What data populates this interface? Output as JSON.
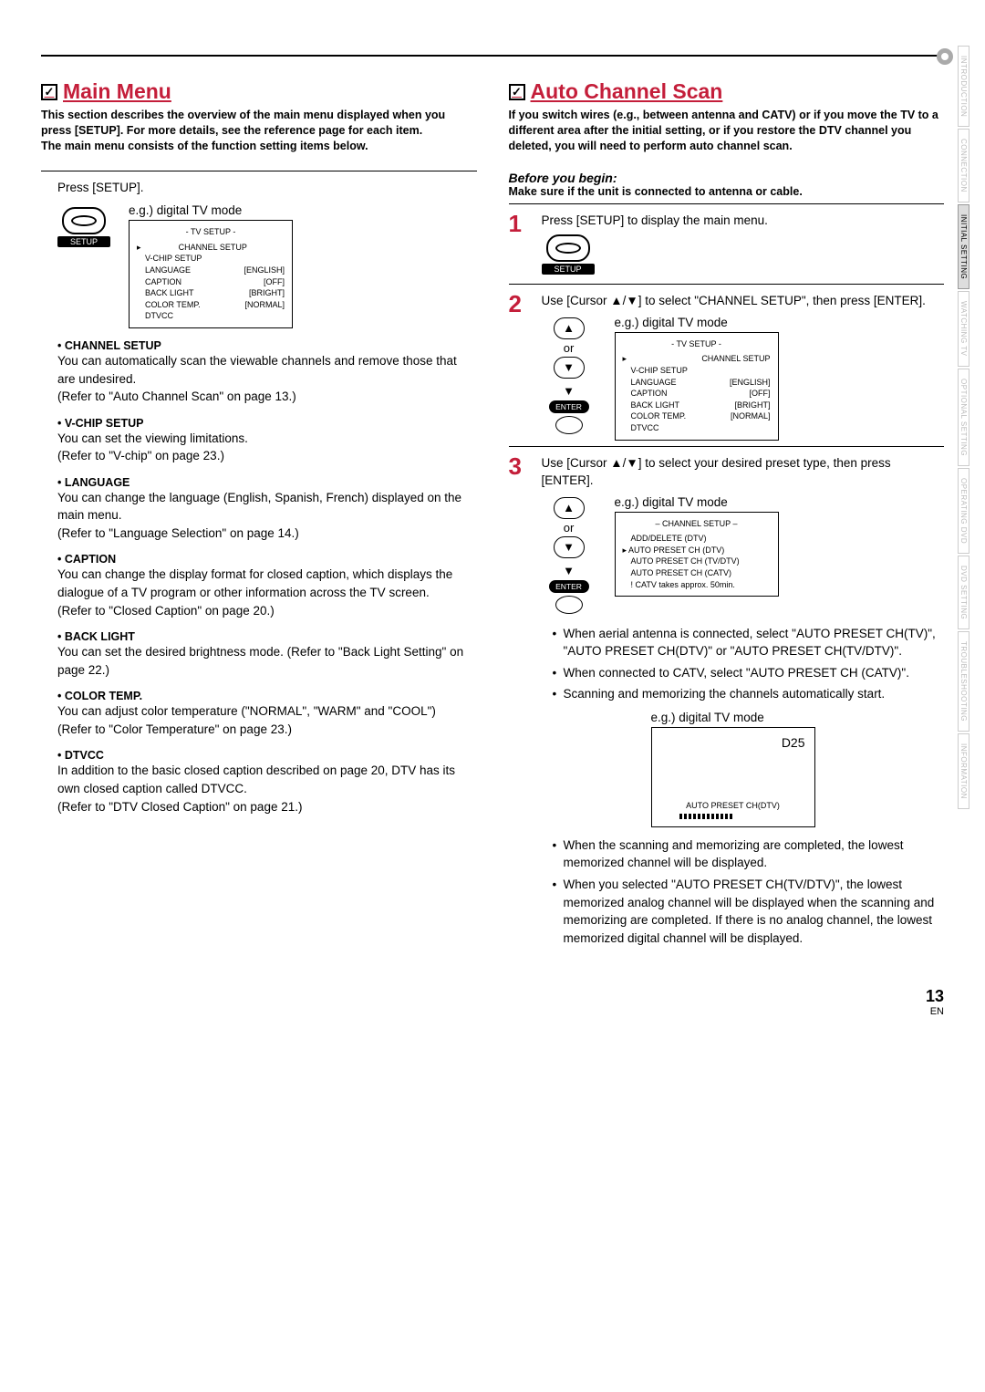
{
  "left": {
    "title": "Main Menu",
    "intro_l1": "This section describes the overview of the main menu displayed when you press [SETUP]. For more details, see the reference page for each item.",
    "intro_l2": "The main menu consists of the function setting items below.",
    "press_setup": "Press [SETUP].",
    "eg": "e.g.) digital TV mode",
    "tv_box": {
      "header": "- TV SETUP -",
      "rows": [
        [
          "CHANNEL SETUP",
          ""
        ],
        [
          "V-CHIP SETUP",
          ""
        ],
        [
          "LANGUAGE",
          "[ENGLISH]"
        ],
        [
          "CAPTION",
          "[OFF]"
        ],
        [
          "BACK LIGHT",
          "[BRIGHT]"
        ],
        [
          "COLOR TEMP.",
          "[NORMAL]"
        ],
        [
          "DTVCC",
          ""
        ]
      ]
    },
    "items": [
      {
        "h": "• CHANNEL SETUP",
        "b": "You can automatically scan the viewable channels and remove those that are undesired.",
        "r": "(Refer to \"Auto Channel Scan\" on page 13.)"
      },
      {
        "h": "• V-CHIP SETUP",
        "b": "You can set the viewing limitations.",
        "r": "(Refer to \"V-chip\" on page 23.)"
      },
      {
        "h": "• LANGUAGE",
        "b": "You can change the language (English, Spanish, French) displayed on the main menu.",
        "r": "(Refer to \"Language Selection\" on page 14.)"
      },
      {
        "h": "• CAPTION",
        "b": "You can change the display format for closed caption, which displays the dialogue of a TV program or other information across the TV screen.",
        "r": "(Refer to \"Closed Caption\" on page 20.)"
      },
      {
        "h": "• BACK LIGHT",
        "b": "You can set the desired brightness mode. (Refer to \"Back Light Setting\" on page 22.)",
        "r": ""
      },
      {
        "h": "• COLOR TEMP.",
        "b": "You can adjust color temperature (\"NORMAL\", \"WARM\" and \"COOL\")",
        "r": "(Refer to \"Color Temperature\" on page 23.)"
      },
      {
        "h": "• DTVCC",
        "b": "In addition to the basic closed caption described on page 20, DTV has its own closed caption called DTVCC.",
        "r": "(Refer to \"DTV Closed Caption\" on page 21.)"
      }
    ]
  },
  "right": {
    "title": "Auto Channel Scan",
    "intro": "If you switch wires (e.g., between antenna and CATV) or if you move the TV to a different area after the initial setting, or if you restore the DTV channel you deleted, you will need to perform auto channel scan.",
    "before": "Before you begin:",
    "before_sub": "Make sure if the unit is connected to antenna or cable.",
    "step1": "Press [SETUP] to display the main menu.",
    "step2": "Use [Cursor ▲/▼] to select \"CHANNEL SETUP\", then press [ENTER].",
    "step3": "Use [Cursor ▲/▼] to select your desired preset type, then press [ENTER].",
    "eg": "e.g.) digital TV mode",
    "or": "or",
    "setup_label": "SETUP",
    "enter_label": "ENTER",
    "ch_box": {
      "header": "– CHANNEL SETUP –",
      "rows": [
        "ADD/DELETE (DTV)",
        "AUTO PRESET CH (DTV)",
        "AUTO PRESET CH (TV/DTV)",
        "AUTO PRESET CH (CATV)",
        "! CATV takes approx. 50min."
      ]
    },
    "notes1": [
      "When aerial antenna is connected, select \"AUTO PRESET CH(TV)\", \"AUTO PRESET CH(DTV)\" or \"AUTO PRESET CH(TV/DTV)\".",
      "When connected to CATV, select \"AUTO PRESET CH (CATV)\".",
      "Scanning and memorizing the channels automatically start."
    ],
    "scan": {
      "ch": "D25",
      "label": "AUTO PRESET CH(DTV)"
    },
    "notes2": [
      "When the scanning and memorizing are completed, the lowest memorized channel will be displayed.",
      "When you selected \"AUTO PRESET CH(TV/DTV)\", the lowest memorized analog channel will be displayed when the scanning and memorizing are completed. If there is no analog channel, the lowest memorized digital channel will be displayed."
    ]
  },
  "tabs": [
    "INTRODUCTION",
    "CONNECTION",
    "INITIAL SETTING",
    "WATCHING TV",
    "OPTIONAL SETTING",
    "OPERATING DVD",
    "DVD SETTING",
    "TROUBLESHOOTING",
    "INFORMATION"
  ],
  "page_num": "13",
  "page_lang": "EN"
}
